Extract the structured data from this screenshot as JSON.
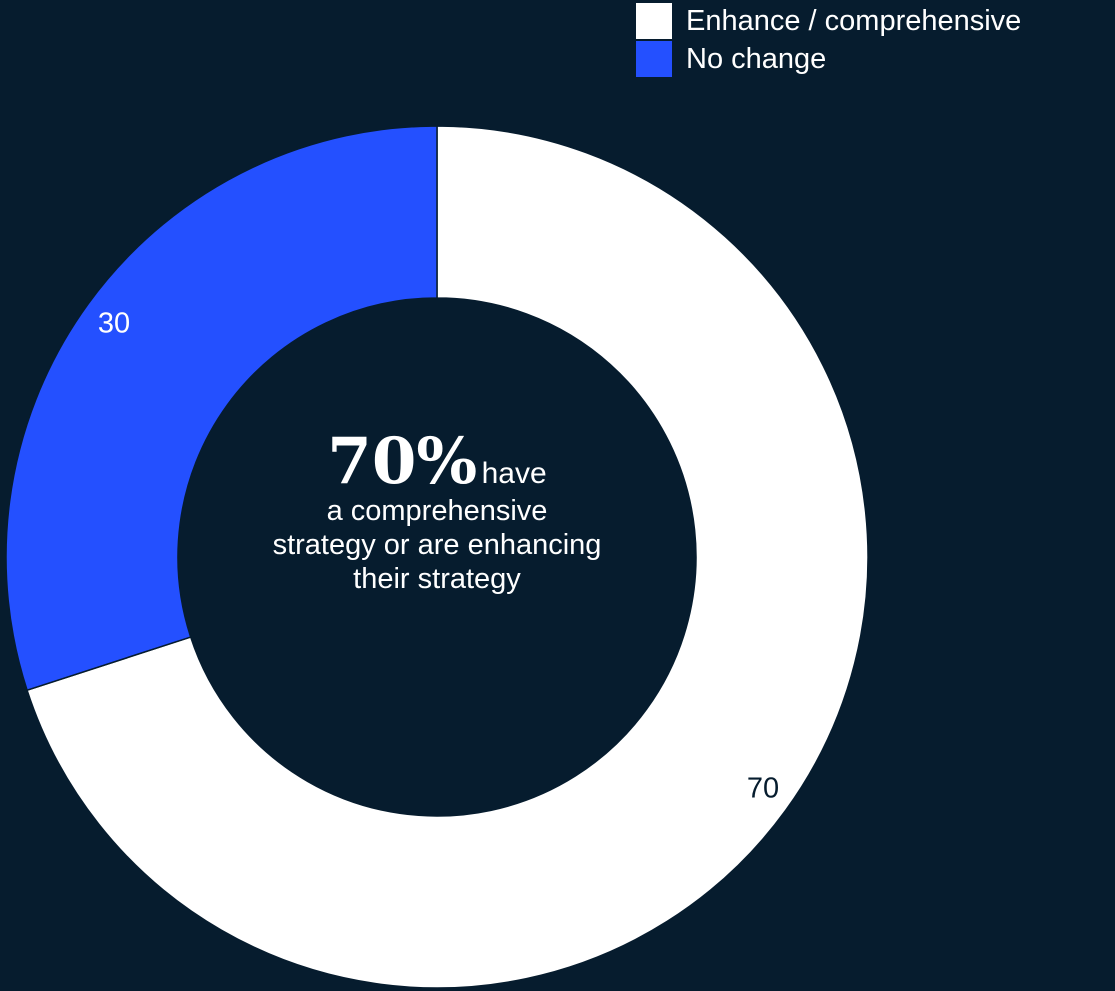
{
  "chart_data": {
    "type": "pie",
    "donut": true,
    "series": [
      {
        "name": "Enhance / comprehensive",
        "value": 70,
        "color": "#ffffff",
        "label": "70"
      },
      {
        "name": "No change",
        "value": 30,
        "color": "#2450ff",
        "label": "30"
      }
    ],
    "legend": {
      "position": "top-right"
    },
    "center_annotation": {
      "percent": "70%",
      "suffix": "have",
      "text": "a comprehensive strategy or are enhancing their strategy"
    }
  },
  "colors": {
    "background": "#061c2e",
    "slice_border": "#061c2e"
  }
}
